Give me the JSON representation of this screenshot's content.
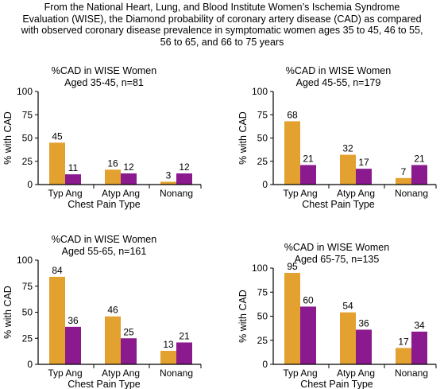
{
  "header": {
    "lines": [
      "From the National Heart, Lung, and Blood Institute Women’s Ischemia Syndrome",
      "Evaluation (WISE), the Diamond probability of coronary artery disease (CAD) as compared",
      "with observed coronary disease prevalence in symptomatic women ages 35 to 45, 46 to 55,",
      "56 to 65, and 66 to 75 years"
    ]
  },
  "colors": {
    "diamond": "#E3A12F",
    "observed": "#8B1A8F",
    "axis": "#000000"
  },
  "chart_data": [
    {
      "type": "bar",
      "title": "%CAD in WISE Women",
      "subtitle": "Aged 35-45, n=81",
      "xlabel": "Chest Pain Type",
      "ylabel": "% with CAD",
      "ylim": [
        0,
        100
      ],
      "yticks": [
        0,
        25,
        50,
        75,
        100
      ],
      "categories": [
        "Typ Ang",
        "Atyp Ang",
        "Nonang"
      ],
      "series": [
        {
          "color": "#E3A12F",
          "values": [
            45,
            16,
            3
          ]
        },
        {
          "color": "#8B1A8F",
          "values": [
            11,
            12,
            12
          ]
        }
      ]
    },
    {
      "type": "bar",
      "title": "%CAD in WISE Women",
      "subtitle": "Aged 45-55, n=179",
      "xlabel": "Chest Pain Type",
      "ylabel": "% with CAD",
      "ylim": [
        0,
        100
      ],
      "yticks": [
        0,
        25,
        50,
        75,
        100
      ],
      "categories": [
        "Typ Ang",
        "Atyp Ang",
        "Nonang"
      ],
      "series": [
        {
          "color": "#E3A12F",
          "values": [
            68,
            32,
            7
          ]
        },
        {
          "color": "#8B1A8F",
          "values": [
            21,
            17,
            21
          ]
        }
      ]
    },
    {
      "type": "bar",
      "title": "%CAD in WISE Women",
      "subtitle": "Aged 55-65, n=161",
      "xlabel": "Chest Pain Type",
      "ylabel": "% with CAD",
      "ylim": [
        0,
        100
      ],
      "yticks": [
        0,
        25,
        50,
        75,
        100
      ],
      "categories": [
        "Typ Ang",
        "Atyp Ang",
        "Nonang"
      ],
      "series": [
        {
          "color": "#E3A12F",
          "values": [
            84,
            46,
            13
          ]
        },
        {
          "color": "#8B1A8F",
          "values": [
            36,
            25,
            21
          ]
        }
      ]
    },
    {
      "type": "bar",
      "title": "%CAD in WISE Women",
      "subtitle": "Aged 65-75, n=135",
      "xlabel": "Chest Pain Type",
      "ylabel": "% with CAD",
      "ylim": [
        0,
        100
      ],
      "yticks": [
        0,
        25,
        50,
        75,
        100
      ],
      "categories": [
        "Typ Ang",
        "Atyp Ang",
        "Nonang"
      ],
      "series": [
        {
          "color": "#E3A12F",
          "values": [
            95,
            54,
            17
          ]
        },
        {
          "color": "#8B1A8F",
          "values": [
            60,
            36,
            34
          ]
        }
      ]
    }
  ]
}
